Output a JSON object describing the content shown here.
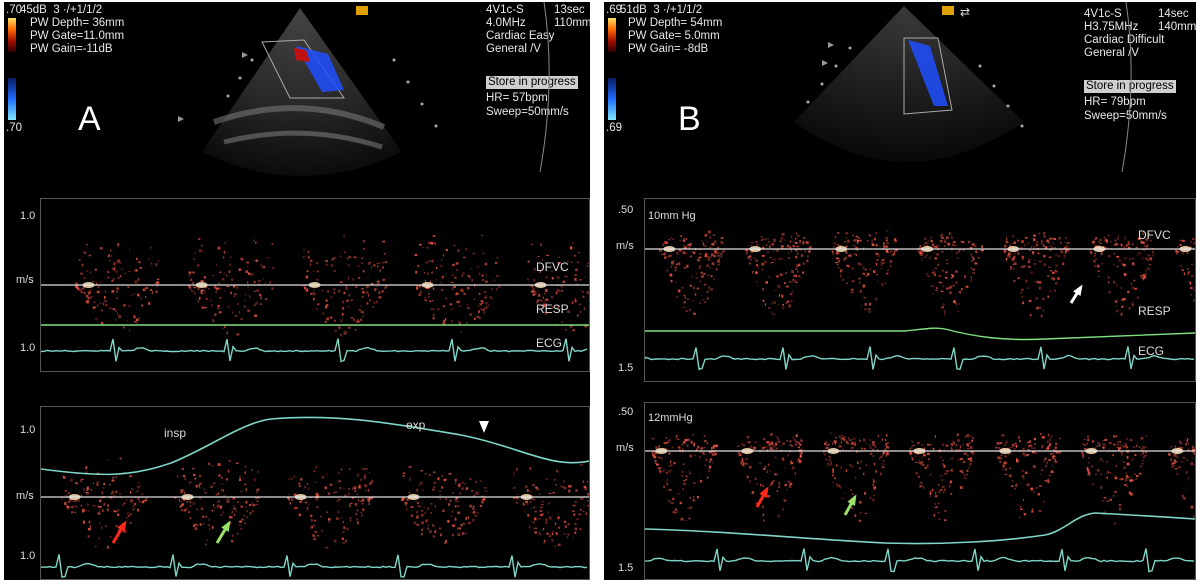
{
  "panelA": {
    "letter": "A",
    "info_left": [
      "45dB  3 ·/+1/1/2",
      "PW Depth= 36mm",
      "PW Gate=11.0mm",
      "PW Gain=-11dB"
    ],
    "scale_top": ".70",
    "scale_bottom": ".70",
    "info_right_1": [
      "4V1c-S",
      "4.0MHz",
      "Cardiac Easy",
      "General /V"
    ],
    "info_right_2": [
      "13sec",
      "110mm"
    ],
    "status": "Store in progress",
    "hr": "HR= 57bpm",
    "sweep": "Sweep=50mm/s",
    "upper": {
      "top_tick": "1.0",
      "unit": "m/s",
      "bottom_tick": "1.0",
      "labels": [
        "DFVC",
        "RESP",
        "ECG"
      ]
    },
    "lower": {
      "top_tick": "1.0",
      "unit": "m/s",
      "bottom_tick": "1.0",
      "insp": "insp",
      "exp": "exp"
    }
  },
  "panelB": {
    "letter": "B",
    "info_left": [
      "51dB  3 ·/+1/1/2",
      "PW Depth= 54mm",
      "PW Gate= 5.0mm",
      "PW Gain= -8dB"
    ],
    "scale_top": ".69",
    "scale_bottom": ".69",
    "info_right_1": [
      "4V1c-S",
      "H3.75MHz",
      "Cardiac Difficult",
      "General /V"
    ],
    "info_right_2": [
      "14sec",
      "140mm"
    ],
    "status": "Store in progress",
    "hr": "HR= 79bpm",
    "sweep": "Sweep=50mm/s",
    "upper": {
      "top_tick": ".50",
      "pressure": "10mm Hg",
      "unit": "m/s",
      "bottom_tick": "1.5",
      "labels": [
        "DFVC",
        "RESP",
        "ECG"
      ]
    },
    "lower": {
      "top_tick": ".50",
      "pressure": "12mmHg",
      "unit": "m/s",
      "bottom_tick": "1.5"
    }
  },
  "colors": {
    "doppler": "#ff5a4a",
    "trace": "#7fd6c8",
    "resp_green": "#7fe07f",
    "baseline": "#e0e0e0",
    "arrow_red": "#ff2a1a",
    "arrow_green": "#9be06a"
  }
}
